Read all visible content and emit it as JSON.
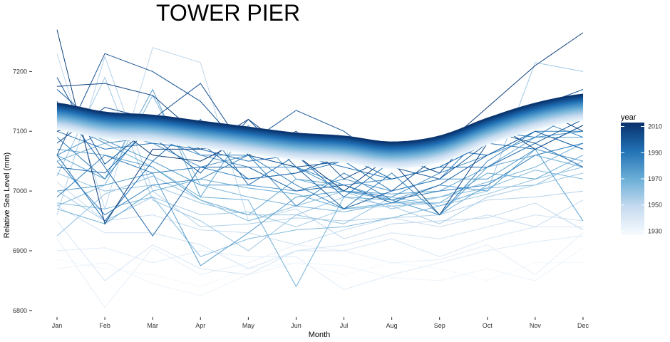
{
  "chart_data": {
    "type": "line",
    "title": "TOWER PIER",
    "xlabel": "Month",
    "ylabel": "Relative Sea Level (mm)",
    "categories": [
      "Jan",
      "Feb",
      "Mar",
      "Apr",
      "May",
      "Jun",
      "Jul",
      "Aug",
      "Sep",
      "Oct",
      "Nov",
      "Dec"
    ],
    "y_ticks": [
      6800,
      6900,
      7000,
      7100,
      7200
    ],
    "ylim": [
      6795,
      7272
    ],
    "grid": false,
    "legend": {
      "title": "year",
      "position": "right",
      "ticks": [
        1930,
        1950,
        1970,
        1990,
        2010
      ],
      "range": [
        1927,
        2013
      ],
      "color_low": "#f7fbff",
      "color_high": "#08306b"
    },
    "series": [
      {
        "year": 1929,
        "values": [
          6885,
          6870,
          6860,
          6840,
          6870,
          6880,
          6860,
          6880,
          6870,
          6850,
          6880,
          6880
        ]
      },
      {
        "year": 1932,
        "values": [
          6870,
          6880,
          6845,
          6825,
          6860,
          6880,
          6875,
          6855,
          6850,
          6870,
          6850,
          6905
        ]
      },
      {
        "year": 1935,
        "values": [
          6920,
          6805,
          6905,
          6860,
          6880,
          6910,
          6900,
          6880,
          6885,
          6910,
          6860,
          6930
        ]
      },
      {
        "year": 1938,
        "values": [
          6900,
          6905,
          6880,
          6900,
          6890,
          6890,
          6835,
          6860,
          6880,
          6900,
          6915,
          6925
        ]
      },
      {
        "year": 1941,
        "values": [
          6950,
          6850,
          6910,
          6870,
          6860,
          6900,
          6900,
          6920,
          6890,
          6920,
          6940,
          6940
        ]
      },
      {
        "year": 1944,
        "values": [
          6975,
          6930,
          6930,
          6910,
          6870,
          6900,
          6910,
          6930,
          6920,
          6940,
          6960,
          6950
        ]
      },
      {
        "year": 1947,
        "values": [
          7015,
          6950,
          6960,
          6935,
          6930,
          6910,
          6935,
          6955,
          6940,
          6960,
          6940,
          6985
        ]
      },
      {
        "year": 1950,
        "values": [
          7230,
          6970,
          7240,
          7215,
          6950,
          6970,
          6920,
          6945,
          6950,
          6955,
          6980,
          6935
        ]
      },
      {
        "year": 1953,
        "values": [
          6960,
          7225,
          7000,
          6940,
          6945,
          6955,
          6950,
          6955,
          6960,
          6985,
          6990,
          7000
        ]
      },
      {
        "year": 1956,
        "values": [
          7000,
          6950,
          6990,
          6960,
          6965,
          6940,
          6970,
          6975,
          6945,
          6990,
          7010,
          7030
        ]
      },
      {
        "year": 1958,
        "values": [
          7025,
          7190,
          6985,
          6950,
          6900,
          6960,
          6990,
          6975,
          6980,
          7000,
          7215,
          7200
        ]
      },
      {
        "year": 1960,
        "values": [
          7030,
          7000,
          7010,
          6980,
          6960,
          6960,
          6945,
          6990,
          6975,
          6995,
          7020,
          7040
        ]
      },
      {
        "year": 1962,
        "values": [
          6925,
          6995,
          7025,
          6985,
          6950,
          6975,
          7000,
          6970,
          6990,
          7005,
          7010,
          7050
        ]
      },
      {
        "year": 1964,
        "values": [
          6980,
          6970,
          6990,
          6890,
          6920,
          6935,
          6940,
          6955,
          6975,
          7005,
          7035,
          7020
        ]
      },
      {
        "year": 1966,
        "values": [
          6975,
          7010,
          7160,
          7010,
          6990,
          6975,
          6965,
          6980,
          6990,
          7015,
          7040,
          7080
        ]
      },
      {
        "year": 1968,
        "values": [
          7050,
          7080,
          7040,
          6990,
          6985,
          6840,
          6990,
          6985,
          6960,
          7010,
          7060,
          7040
        ]
      },
      {
        "year": 1970,
        "values": [
          6970,
          6945,
          7000,
          7020,
          7005,
          6995,
          6970,
          6980,
          6980,
          7030,
          7020,
          7060
        ]
      },
      {
        "year": 1972,
        "values": [
          7070,
          7060,
          7040,
          6985,
          6960,
          7020,
          7000,
          6995,
          7000,
          7040,
          7060,
          7080
        ]
      },
      {
        "year": 1974,
        "values": [
          7060,
          7020,
          7170,
          6990,
          7110,
          7020,
          7010,
          6985,
          6960,
          7040,
          7090,
          7090
        ]
      },
      {
        "year": 1976,
        "values": [
          7000,
          7010,
          7030,
          6875,
          6930,
          6990,
          7000,
          6985,
          7010,
          7000,
          7070,
          6950
        ]
      },
      {
        "year": 1978,
        "values": [
          7115,
          7085,
          7050,
          7010,
          7010,
          7000,
          7020,
          7000,
          7020,
          7020,
          7070,
          7050
        ]
      },
      {
        "year": 1980,
        "values": [
          7060,
          7100,
          7080,
          7040,
          7060,
          7040,
          7000,
          6990,
          7030,
          7060,
          7090,
          7100
        ]
      },
      {
        "year": 1982,
        "values": [
          7120,
          7080,
          7090,
          7060,
          7040,
          7040,
          7010,
          7020,
          7040,
          7080,
          7120,
          7090
        ]
      },
      {
        "year": 1984,
        "values": [
          7050,
          6960,
          7010,
          7020,
          7060,
          6975,
          7030,
          6985,
          7000,
          7010,
          7060,
          7080
        ]
      },
      {
        "year": 1986,
        "values": [
          7090,
          7020,
          7120,
          7060,
          7060,
          7010,
          6970,
          7030,
          6960,
          7050,
          7100,
          7100
        ]
      },
      {
        "year": 1988,
        "values": [
          6990,
          7060,
          7030,
          7040,
          7020,
          7030,
          7050,
          7000,
          7020,
          7100,
          7090,
          7140
        ]
      },
      {
        "year": 1990,
        "values": [
          7100,
          7070,
          7080,
          7070,
          7050,
          7060,
          7040,
          7020,
          7040,
          7080,
          7070,
          7110
        ]
      },
      {
        "year": 1992,
        "values": [
          7060,
          6950,
          7050,
          7120,
          7010,
          7060,
          6990,
          7050,
          7070,
          7060,
          7100,
          7070
        ]
      },
      {
        "year": 1994,
        "values": [
          7040,
          7030,
          7110,
          7080,
          7020,
          7030,
          7060,
          7020,
          7040,
          7040,
          7080,
          7040
        ]
      },
      {
        "year": 1996,
        "values": [
          7150,
          7040,
          6925,
          7040,
          7040,
          7000,
          7010,
          6980,
          7010,
          7060,
          7100,
          7070
        ]
      },
      {
        "year": 1998,
        "values": [
          7170,
          7100,
          7090,
          7030,
          7120,
          7040,
          6970,
          7000,
          7060,
          7100,
          7080,
          7120
        ]
      },
      {
        "year": 2000,
        "values": [
          7190,
          7045,
          7110,
          7070,
          7080,
          7135,
          7100,
          7040,
          7020,
          7080,
          7140,
          7170
        ]
      },
      {
        "year": 2002,
        "values": [
          7060,
          7230,
          7200,
          7150,
          7060,
          7040,
          7050,
          7040,
          7080,
          7100,
          7120,
          7150
        ]
      },
      {
        "year": 2004,
        "values": [
          7080,
          7140,
          7120,
          7180,
          7060,
          7100,
          7020,
          7060,
          7030,
          7120,
          7070,
          7110
        ]
      },
      {
        "year": 2006,
        "values": [
          7175,
          7180,
          7160,
          7090,
          7100,
          7090,
          7070,
          7050,
          6960,
          7080,
          7140,
          7100
        ]
      },
      {
        "year": 2008,
        "values": [
          7270,
          6945,
          7070,
          7070,
          7120,
          7060,
          7000,
          7060,
          7070,
          7140,
          7210,
          7265
        ]
      },
      {
        "year": 2010,
        "values": [
          7100,
          7120,
          7060,
          7050,
          7090,
          7060,
          7050,
          7040,
          7050,
          7080,
          7140,
          7150
        ]
      }
    ],
    "smooth_band": {
      "year_start": 1930,
      "year_end": 2012,
      "values": [
        7125,
        7110,
        7105,
        7095,
        7085,
        7075,
        7070,
        7060,
        7070,
        7100,
        7125,
        7140
      ],
      "spread": 22
    }
  }
}
